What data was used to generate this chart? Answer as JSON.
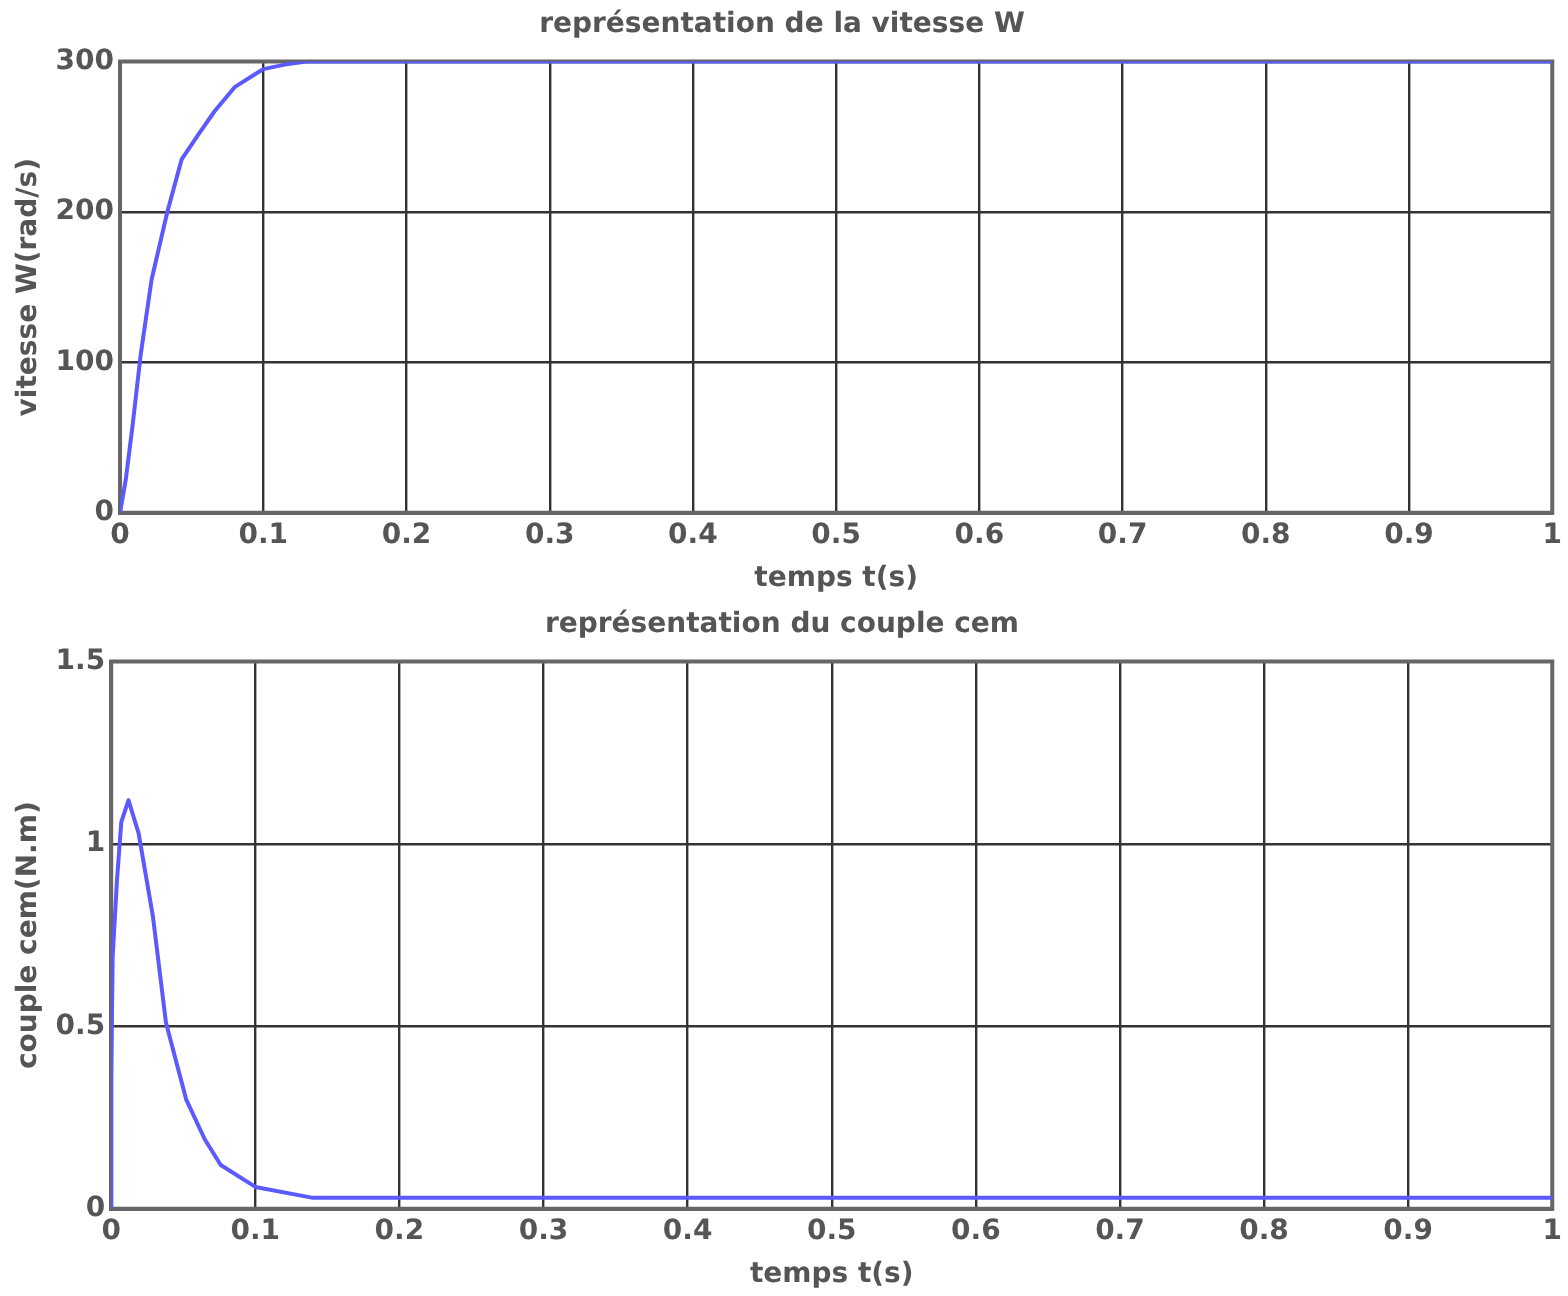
{
  "chart_data": [
    {
      "type": "line",
      "title": "représentation de la vitesse W",
      "xlabel": "temps t(s)",
      "ylabel": "vitesse W(rad/s)",
      "xlim": [
        0,
        1
      ],
      "xticks": [
        0,
        0.1,
        0.2,
        0.3,
        0.4,
        0.5,
        0.6,
        0.7,
        0.8,
        0.9,
        1
      ],
      "ylim": [
        0,
        300
      ],
      "yticks": [
        0,
        100,
        200,
        300
      ],
      "grid": true,
      "legend": false,
      "marker": "none",
      "line_style": "solid",
      "series": [
        {
          "color": "#5a5aff",
          "x": [
            0,
            0.004,
            0.009,
            0.0144,
            0.022,
            0.033,
            0.043,
            0.055,
            0.066,
            0.08,
            0.1,
            0.115,
            0.13,
            0.2,
            0.4,
            0.6,
            0.8,
            1
          ],
          "values": [
            0,
            22,
            60,
            105,
            155,
            200,
            235,
            252,
            267,
            283,
            295,
            298,
            300,
            300,
            300,
            300,
            300,
            300
          ]
        }
      ]
    },
    {
      "type": "line",
      "title": "représentation du couple cem",
      "xlabel": "temps t(s)",
      "ylabel": "couple cem(N.m)",
      "xlim": [
        0,
        1
      ],
      "xticks": [
        0,
        0.1,
        0.2,
        0.3,
        0.4,
        0.5,
        0.6,
        0.7,
        0.8,
        0.9,
        1
      ],
      "ylim": [
        0,
        1.5
      ],
      "yticks": [
        0,
        0.5,
        1,
        1.5
      ],
      "grid": true,
      "legend": false,
      "marker": "none",
      "line_style": "solid",
      "series": [
        {
          "color": "#5a5aff",
          "x": [
            0,
            0,
            0.001,
            0.004,
            0.007,
            0.012,
            0.019,
            0.029,
            0.038,
            0.052,
            0.065,
            0.076,
            0.1,
            0.14,
            0.3,
            0.6,
            1
          ],
          "values": [
            0,
            0.35,
            0.69,
            0.9,
            1.06,
            1.12,
            1.03,
            0.8,
            0.51,
            0.3,
            0.19,
            0.12,
            0.06,
            0.03,
            0.03,
            0.03,
            0.03
          ]
        }
      ]
    }
  ]
}
